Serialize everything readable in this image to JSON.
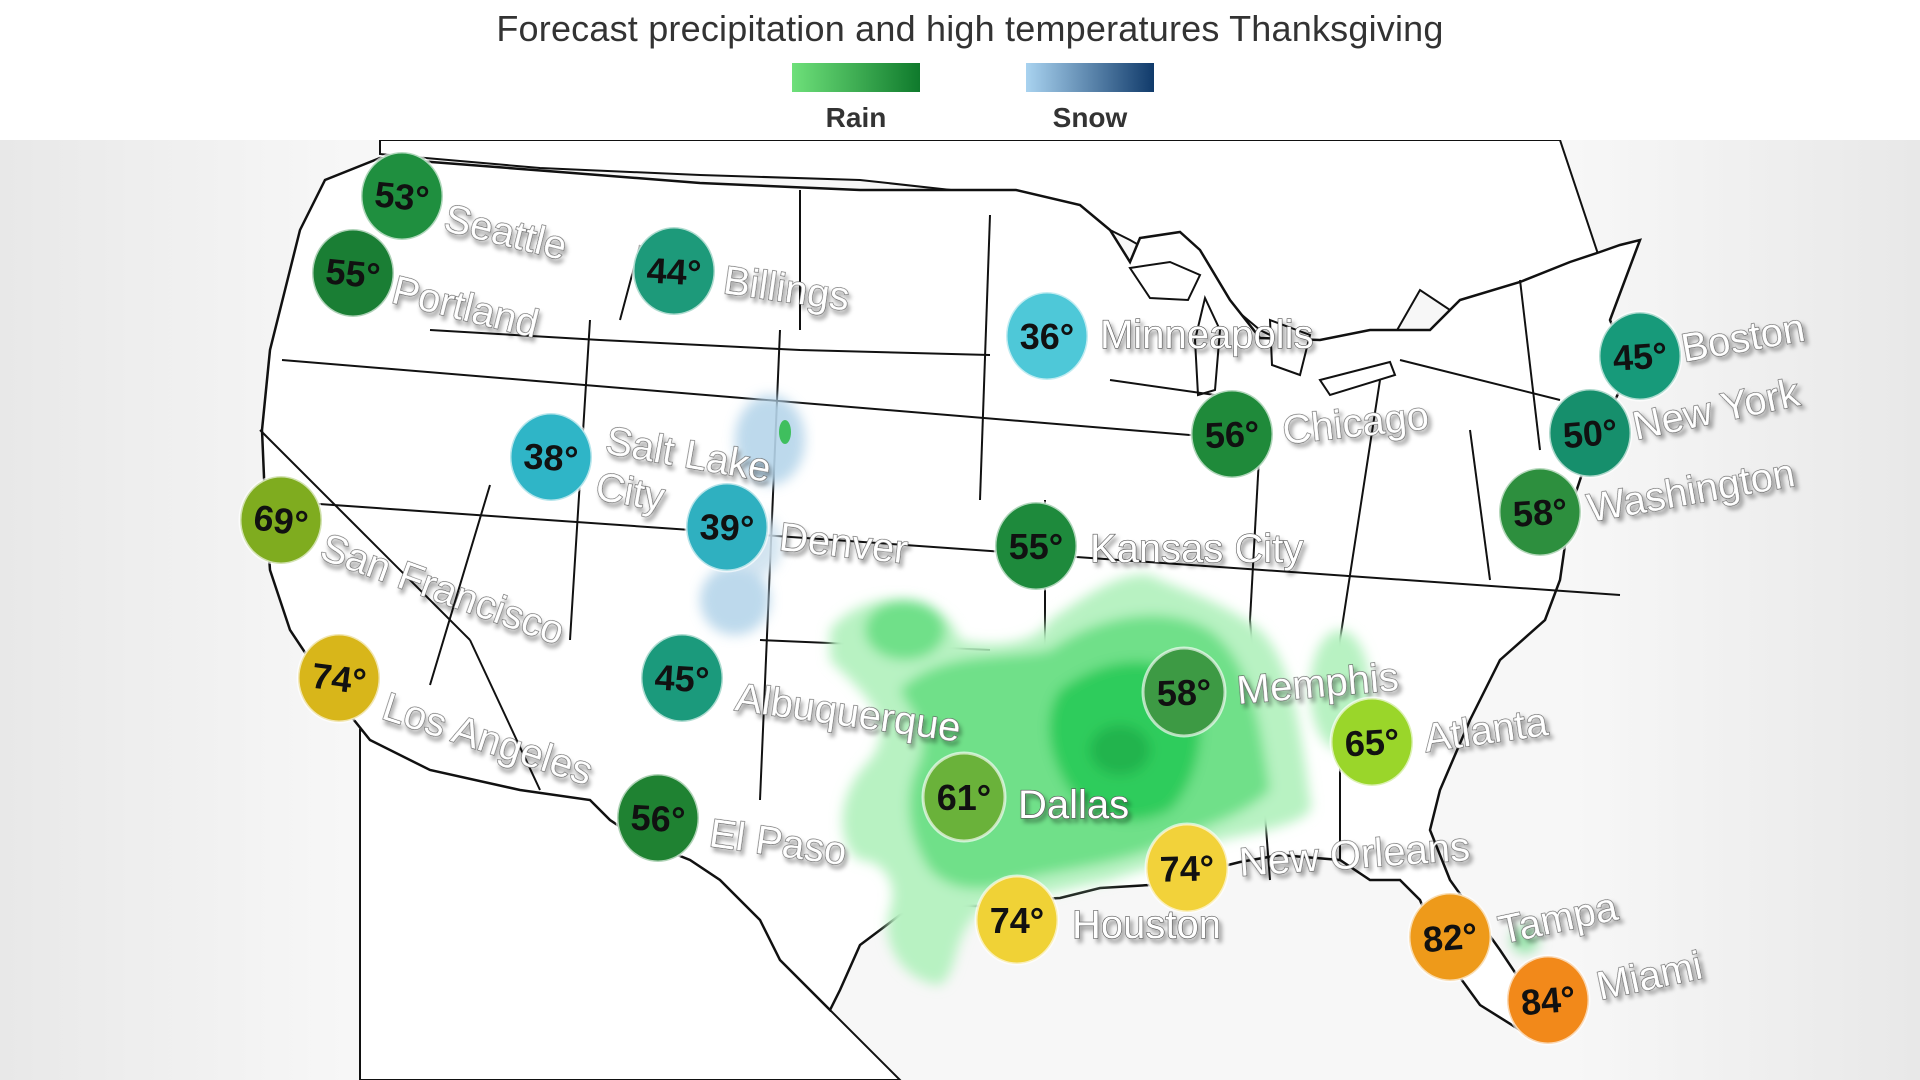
{
  "header": {
    "title": "Forecast precipitation and high temperatures Thanksgiving"
  },
  "legend": {
    "rain": {
      "label": "Rain",
      "from": "#6ee07a",
      "to": "#0f7a2c"
    },
    "snow": {
      "label": "Snow",
      "from": "#a9d3f0",
      "to": "#103a6a"
    }
  },
  "colors": {
    "precip_light": "#b8f2c2",
    "precip_mid": "#6fe089",
    "precip_heavy": "#2ecc5c",
    "snow_light": "#b6d5ea",
    "border": "#111111"
  },
  "cities": [
    {
      "name": "Seattle",
      "temp": "53°",
      "color": "#1f8f3f",
      "label_lines": [
        "Seattle"
      ]
    },
    {
      "name": "Portland",
      "temp": "55°",
      "color": "#1a7e34",
      "label_lines": [
        "Portland"
      ]
    },
    {
      "name": "Billings",
      "temp": "44°",
      "color": "#1d9a7a",
      "label_lines": [
        "Billings"
      ]
    },
    {
      "name": "Minneapolis",
      "temp": "36°",
      "color": "#4ec8d8",
      "label_lines": [
        "Minneapolis"
      ]
    },
    {
      "name": "Boston",
      "temp": "45°",
      "color": "#179a7a",
      "label_lines": [
        "Boston"
      ]
    },
    {
      "name": "New York",
      "temp": "50°",
      "color": "#168f6c",
      "label_lines": [
        "New York"
      ]
    },
    {
      "name": "Chicago",
      "temp": "56°",
      "color": "#1f8a3a",
      "label_lines": [
        "Chicago"
      ]
    },
    {
      "name": "Washington",
      "temp": "58°",
      "color": "#2d8f3e",
      "label_lines": [
        "Washington"
      ]
    },
    {
      "name": "Salt Lake City",
      "temp": "38°",
      "color": "#2fb5c7",
      "label_lines": [
        "Salt Lake",
        "City"
      ]
    },
    {
      "name": "Denver",
      "temp": "39°",
      "color": "#2fb0c0",
      "label_lines": [
        "Denver"
      ]
    },
    {
      "name": "Kansas City",
      "temp": "55°",
      "color": "#1e8a3c",
      "label_lines": [
        "Kansas City"
      ]
    },
    {
      "name": "San Francisco",
      "temp": "69°",
      "color": "#7fac1f",
      "label_lines": [
        "San Francisco"
      ]
    },
    {
      "name": "Los Angeles",
      "temp": "74°",
      "color": "#d8b61a",
      "label_lines": [
        "Los Angeles"
      ]
    },
    {
      "name": "Albuquerque",
      "temp": "45°",
      "color": "#1b9a7c",
      "label_lines": [
        "Albuquerque"
      ]
    },
    {
      "name": "Memphis",
      "temp": "58°",
      "color": "#3d9a44",
      "label_lines": [
        "Memphis"
      ]
    },
    {
      "name": "Atlanta",
      "temp": "65°",
      "color": "#9ad62a",
      "label_lines": [
        "Atlanta"
      ]
    },
    {
      "name": "El Paso",
      "temp": "56°",
      "color": "#1f8232",
      "label_lines": [
        "El Paso"
      ]
    },
    {
      "name": "Dallas",
      "temp": "61°",
      "color": "#6ab23a",
      "label_lines": [
        "Dallas"
      ]
    },
    {
      "name": "New Orleans",
      "temp": "74°",
      "color": "#f2d23a",
      "label_lines": [
        "New Orleans"
      ]
    },
    {
      "name": "Houston",
      "temp": "74°",
      "color": "#f0d236",
      "label_lines": [
        "Houston"
      ]
    },
    {
      "name": "Tampa",
      "temp": "82°",
      "color": "#ee9a1a",
      "label_lines": [
        "Tampa"
      ]
    },
    {
      "name": "Miami",
      "temp": "84°",
      "color": "#f2891a",
      "label_lines": [
        "Miami"
      ]
    }
  ]
}
